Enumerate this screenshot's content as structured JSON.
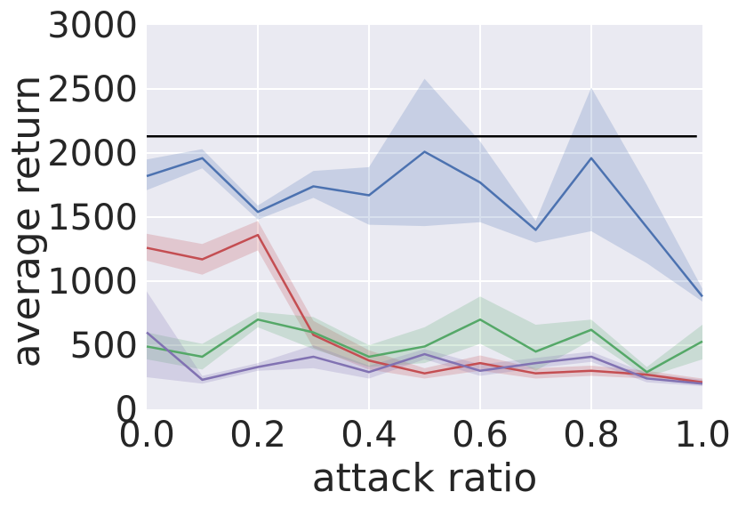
{
  "chart_data": {
    "type": "line",
    "title": "",
    "xlabel": "attack ratio",
    "ylabel": "average return",
    "xlim": [
      0.0,
      1.0
    ],
    "ylim": [
      0,
      3000
    ],
    "xticks": [
      "0.0",
      "0.2",
      "0.4",
      "0.6",
      "0.8",
      "1.0"
    ],
    "yticks": [
      "0",
      "500",
      "1000",
      "1500",
      "2000",
      "2500",
      "3000"
    ],
    "grid": true,
    "background": "#EAEAF2",
    "x": [
      0.0,
      0.1,
      0.2,
      0.3,
      0.4,
      0.5,
      0.6,
      0.7,
      0.8,
      0.9,
      1.0
    ],
    "reference_line": {
      "y": 2130,
      "x_range": [
        0.0,
        0.99
      ],
      "color": "#000000"
    },
    "series": [
      {
        "color": "#4C72B0",
        "values": [
          1820,
          1960,
          1540,
          1740,
          1670,
          2010,
          1770,
          1400,
          1960,
          1420,
          880
        ],
        "upper": [
          1950,
          2030,
          1590,
          1860,
          1890,
          2580,
          2090,
          1470,
          2510,
          1750,
          940
        ],
        "lower": [
          1710,
          1880,
          1480,
          1650,
          1440,
          1430,
          1460,
          1300,
          1390,
          1140,
          840
        ]
      },
      {
        "color": "#C44E52",
        "values": [
          1260,
          1170,
          1360,
          580,
          380,
          280,
          360,
          280,
          300,
          270,
          210
        ],
        "upper": [
          1370,
          1290,
          1470,
          690,
          460,
          320,
          420,
          320,
          340,
          300,
          240
        ],
        "lower": [
          1160,
          1050,
          1240,
          480,
          310,
          240,
          300,
          240,
          260,
          240,
          190
        ]
      },
      {
        "color": "#55A868",
        "values": [
          490,
          410,
          700,
          600,
          410,
          490,
          700,
          450,
          620,
          290,
          530
        ],
        "upper": [
          600,
          510,
          760,
          720,
          500,
          640,
          880,
          660,
          700,
          330,
          660
        ],
        "lower": [
          390,
          310,
          640,
          470,
          330,
          360,
          510,
          300,
          540,
          250,
          390
        ]
      },
      {
        "color": "#8172B2",
        "values": [
          600,
          230,
          330,
          410,
          290,
          430,
          300,
          360,
          410,
          240,
          200
        ],
        "upper": [
          920,
          260,
          360,
          500,
          340,
          470,
          350,
          400,
          450,
          280,
          230
        ],
        "lower": [
          250,
          200,
          300,
          320,
          240,
          390,
          260,
          320,
          370,
          210,
          180
        ]
      }
    ]
  }
}
